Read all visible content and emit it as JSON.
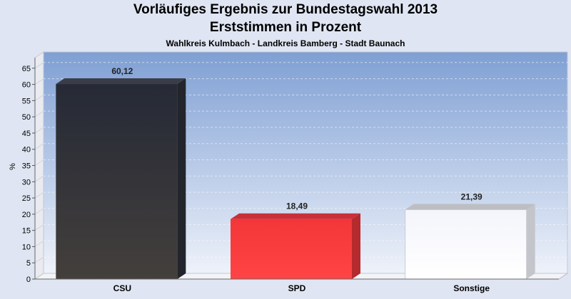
{
  "header": {
    "title_line1": "Vorläufiges Ergebnis zur Bundestagswahl 2013",
    "title_line2": "Erststimmen in Prozent",
    "subtitle": "Wahlkreis Kulmbach - Landkreis Bamberg - Stadt Baunach"
  },
  "chart_data": {
    "type": "bar",
    "title": "Vorläufiges Ergebnis zur Bundestagswahl 2013 Erststimmen in Prozent",
    "subtitle": "Wahlkreis Kulmbach - Landkreis Bamberg - Stadt Baunach",
    "xlabel": "",
    "ylabel": "%",
    "ylim": [
      0,
      70
    ],
    "yticks": [
      0,
      5,
      10,
      15,
      20,
      25,
      30,
      35,
      40,
      45,
      50,
      55,
      60,
      65
    ],
    "categories": [
      "CSU",
      "SPD",
      "Sonstige"
    ],
    "values": [
      60.12,
      18.49,
      21.39
    ],
    "value_labels": [
      "60,12",
      "18,49",
      "21,39"
    ],
    "colors": [
      "#2b2d35",
      "#f03a3c",
      "#f8f9fc"
    ],
    "grid": true,
    "legend": "none"
  }
}
